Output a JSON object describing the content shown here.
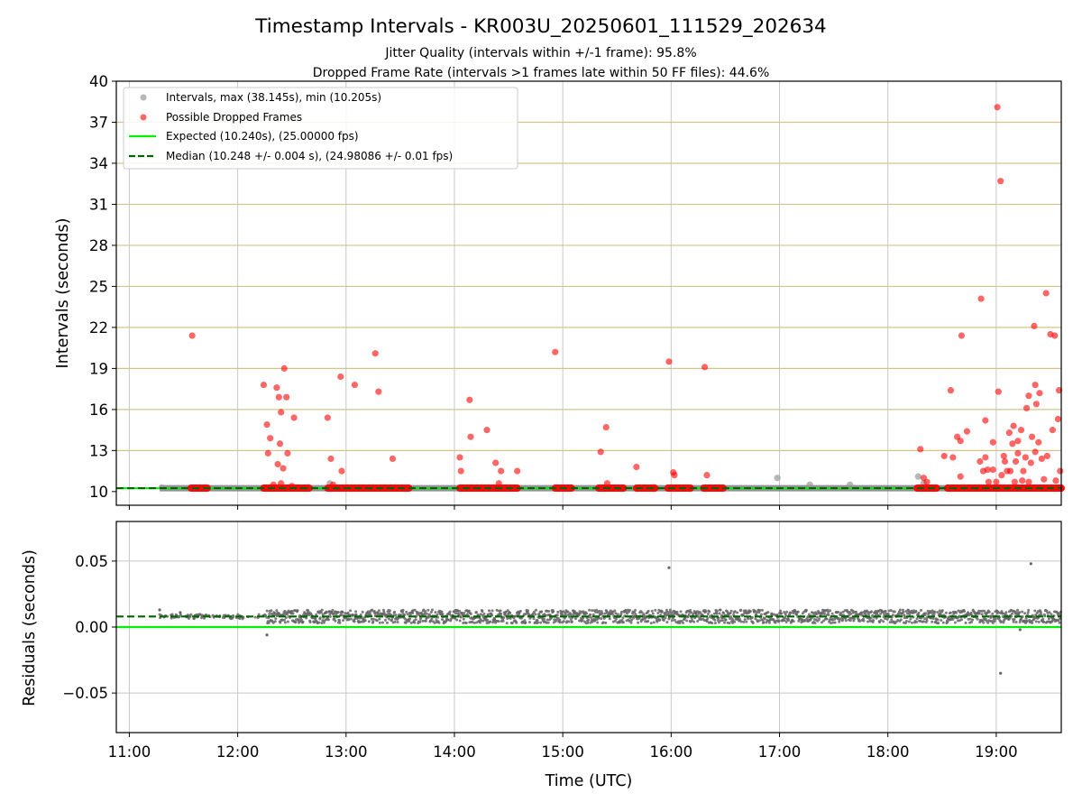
{
  "chart_data": [
    {
      "type": "scatter",
      "title": "Timestamp Intervals - KR003U_20250601_111529_202634",
      "subtitle_lines": [
        "Jitter Quality (intervals within +/-1 frame): 95.8%",
        "Dropped Frame Rate (intervals >1 frames late within 50 FF files): 44.6%"
      ],
      "xlabel": "",
      "ylabel": "Intervals (seconds)",
      "x_unit": "hours UTC",
      "xlim": [
        10.88,
        19.6
      ],
      "ylim": [
        9,
        40
      ],
      "y_ticks": [
        "10",
        "13",
        "16",
        "19",
        "22",
        "25",
        "28",
        "31",
        "34",
        "37",
        "40"
      ],
      "y_tick_values": [
        10,
        13,
        16,
        19,
        22,
        25,
        28,
        31,
        34,
        37,
        40
      ],
      "x_tick_values": [
        11,
        12,
        13,
        14,
        15,
        16,
        17,
        18,
        19
      ],
      "grid": true,
      "horizontal_reference_color": "#d4c48a",
      "legend_position": "upper-left",
      "legend": [
        {
          "label": "Intervals, max (38.145s), min (10.205s)",
          "color": "#999999",
          "marker": "point"
        },
        {
          "label": "Possible Dropped Frames",
          "color": "#ff0000",
          "marker": "point"
        },
        {
          "label": "Expected (10.240s), (25.00000 fps)",
          "color": "#00ee00",
          "marker": "line"
        },
        {
          "label": "Median (10.248 +/- 0.004 s), (24.98086 +/- 0.01 fps)",
          "color": "#006400",
          "marker": "dashed-line"
        }
      ],
      "expected_value": 10.24,
      "median_value": 10.248,
      "baseline_segment": {
        "x": [
          11.28,
          19.6
        ],
        "y": 10.248
      },
      "series": [
        {
          "name": "Intervals",
          "color": "#999999",
          "points": [
            [
              16.98,
              11.0
            ],
            [
              17.28,
              10.5
            ],
            [
              17.65,
              10.5
            ],
            [
              18.28,
              11.1
            ],
            [
              18.33,
              10.6
            ],
            [
              12.85,
              10.6
            ],
            [
              11.3,
              10.3
            ]
          ]
        },
        {
          "name": "Possible Dropped Frames",
          "color": "#ff0000",
          "runs": [
            [
              11.57,
              11.72
            ],
            [
              12.24,
              12.66
            ],
            [
              12.83,
              13.58
            ],
            [
              14.05,
              14.58
            ],
            [
              14.93,
              15.08
            ],
            [
              15.33,
              15.56
            ],
            [
              15.68,
              15.85
            ],
            [
              15.97,
              16.18
            ],
            [
              16.3,
              16.48
            ],
            [
              18.27,
              18.45
            ],
            [
              18.55,
              19.6
            ]
          ],
          "run_y": 10.25,
          "points": [
            [
              11.58,
              21.4
            ],
            [
              12.24,
              17.8
            ],
            [
              12.27,
              14.9
            ],
            [
              12.28,
              12.8
            ],
            [
              12.3,
              13.9
            ],
            [
              12.33,
              10.5
            ],
            [
              12.36,
              17.6
            ],
            [
              12.37,
              12.0
            ],
            [
              12.38,
              16.9
            ],
            [
              12.39,
              13.5
            ],
            [
              12.4,
              15.8
            ],
            [
              12.42,
              11.7
            ],
            [
              12.43,
              19.0
            ],
            [
              12.45,
              16.9
            ],
            [
              12.46,
              12.8
            ],
            [
              12.5,
              10.4
            ],
            [
              12.52,
              15.4
            ],
            [
              12.4,
              10.6
            ],
            [
              12.83,
              15.4
            ],
            [
              12.86,
              12.4
            ],
            [
              12.88,
              10.5
            ],
            [
              12.95,
              18.4
            ],
            [
              12.96,
              11.5
            ],
            [
              13.08,
              17.8
            ],
            [
              13.27,
              20.1
            ],
            [
              13.3,
              17.3
            ],
            [
              13.43,
              12.4
            ],
            [
              14.05,
              12.5
            ],
            [
              14.06,
              11.5
            ],
            [
              14.14,
              16.7
            ],
            [
              14.15,
              14.0
            ],
            [
              14.3,
              14.5
            ],
            [
              14.38,
              12.1
            ],
            [
              14.43,
              11.5
            ],
            [
              14.41,
              10.6
            ],
            [
              14.58,
              11.5
            ],
            [
              14.93,
              20.2
            ],
            [
              15.35,
              12.9
            ],
            [
              15.4,
              14.7
            ],
            [
              15.41,
              10.6
            ],
            [
              15.68,
              11.8
            ],
            [
              15.98,
              19.5
            ],
            [
              16.02,
              11.4
            ],
            [
              16.03,
              11.2
            ],
            [
              16.33,
              11.2
            ],
            [
              16.31,
              19.1
            ],
            [
              18.3,
              13.1
            ],
            [
              18.33,
              11.0
            ],
            [
              18.36,
              10.7
            ],
            [
              18.52,
              12.6
            ],
            [
              18.58,
              17.4
            ],
            [
              18.6,
              12.5
            ],
            [
              18.64,
              14.0
            ],
            [
              18.67,
              11.1
            ],
            [
              18.67,
              13.7
            ],
            [
              18.68,
              21.4
            ],
            [
              18.73,
              14.4
            ],
            [
              18.85,
              12.2
            ],
            [
              18.86,
              24.1
            ],
            [
              18.88,
              11.5
            ],
            [
              18.9,
              12.5
            ],
            [
              18.9,
              15.2
            ],
            [
              18.92,
              11.6
            ],
            [
              18.93,
              10.7
            ],
            [
              18.97,
              13.6
            ],
            [
              18.97,
              11.6
            ],
            [
              19.0,
              10.7
            ],
            [
              19.01,
              38.1
            ],
            [
              19.02,
              17.3
            ],
            [
              19.04,
              32.7
            ],
            [
              19.05,
              11.2
            ],
            [
              19.07,
              12.6
            ],
            [
              19.08,
              12.2
            ],
            [
              19.1,
              11.5
            ],
            [
              19.12,
              14.3
            ],
            [
              19.13,
              11.5
            ],
            [
              19.15,
              13.5
            ],
            [
              19.16,
              14.8
            ],
            [
              19.17,
              10.7
            ],
            [
              19.18,
              12.2
            ],
            [
              19.2,
              12.8
            ],
            [
              19.2,
              13.7
            ],
            [
              19.23,
              14.5
            ],
            [
              19.24,
              10.8
            ],
            [
              19.25,
              11.5
            ],
            [
              19.27,
              12.5
            ],
            [
              19.28,
              16.1
            ],
            [
              19.3,
              17.0
            ],
            [
              19.3,
              10.7
            ],
            [
              19.32,
              12.1
            ],
            [
              19.33,
              14.0
            ],
            [
              19.35,
              22.1
            ],
            [
              19.37,
              16.4
            ],
            [
              19.39,
              13.6
            ],
            [
              19.4,
              17.2
            ],
            [
              19.42,
              12.4
            ],
            [
              19.44,
              10.9
            ],
            [
              19.46,
              24.5
            ],
            [
              19.47,
              12.6
            ],
            [
              19.5,
              21.5
            ],
            [
              19.52,
              14.5
            ],
            [
              19.54,
              21.4
            ],
            [
              19.55,
              10.8
            ],
            [
              19.57,
              15.3
            ],
            [
              19.58,
              17.4
            ],
            [
              19.59,
              11.5
            ],
            [
              19.36,
              17.8
            ],
            [
              19.36,
              12.9
            ]
          ]
        },
        {
          "name": "Expected",
          "color": "#00ee00",
          "y": 10.24
        },
        {
          "name": "Median",
          "color": "#006400",
          "y": 10.248
        }
      ]
    },
    {
      "type": "scatter",
      "title": "",
      "xlabel": "Time (UTC)",
      "ylabel": "Residuals (seconds)",
      "xlim": [
        10.88,
        19.6
      ],
      "ylim": [
        -0.08,
        0.08
      ],
      "y_ticks": [
        "0.05",
        "0.00",
        "−0.05"
      ],
      "y_tick_values": [
        0.05,
        0.0,
        -0.05
      ],
      "x_ticks": [
        "11:00",
        "12:00",
        "13:00",
        "14:00",
        "15:00",
        "16:00",
        "17:00",
        "18:00",
        "19:00"
      ],
      "x_tick_values": [
        11,
        12,
        13,
        14,
        15,
        16,
        17,
        18,
        19
      ],
      "grid": true,
      "series": [
        {
          "name": "Residuals",
          "color": "#666666",
          "band_start": 11.28,
          "band_end": 19.6,
          "band_main_start": 12.27,
          "band_center": 0.008,
          "band_halfwidth": 0.005,
          "outliers": [
            [
              15.98,
              0.045
            ],
            [
              19.32,
              0.048
            ],
            [
              19.04,
              -0.035
            ],
            [
              12.27,
              -0.006
            ],
            [
              19.22,
              -0.002
            ],
            [
              11.28,
              0.013
            ],
            [
              11.47,
              0.011
            ]
          ]
        },
        {
          "name": "Expected",
          "color": "#00ee00",
          "y": 0.0
        },
        {
          "name": "Median",
          "color": "#006400",
          "y": 0.008
        }
      ]
    }
  ]
}
